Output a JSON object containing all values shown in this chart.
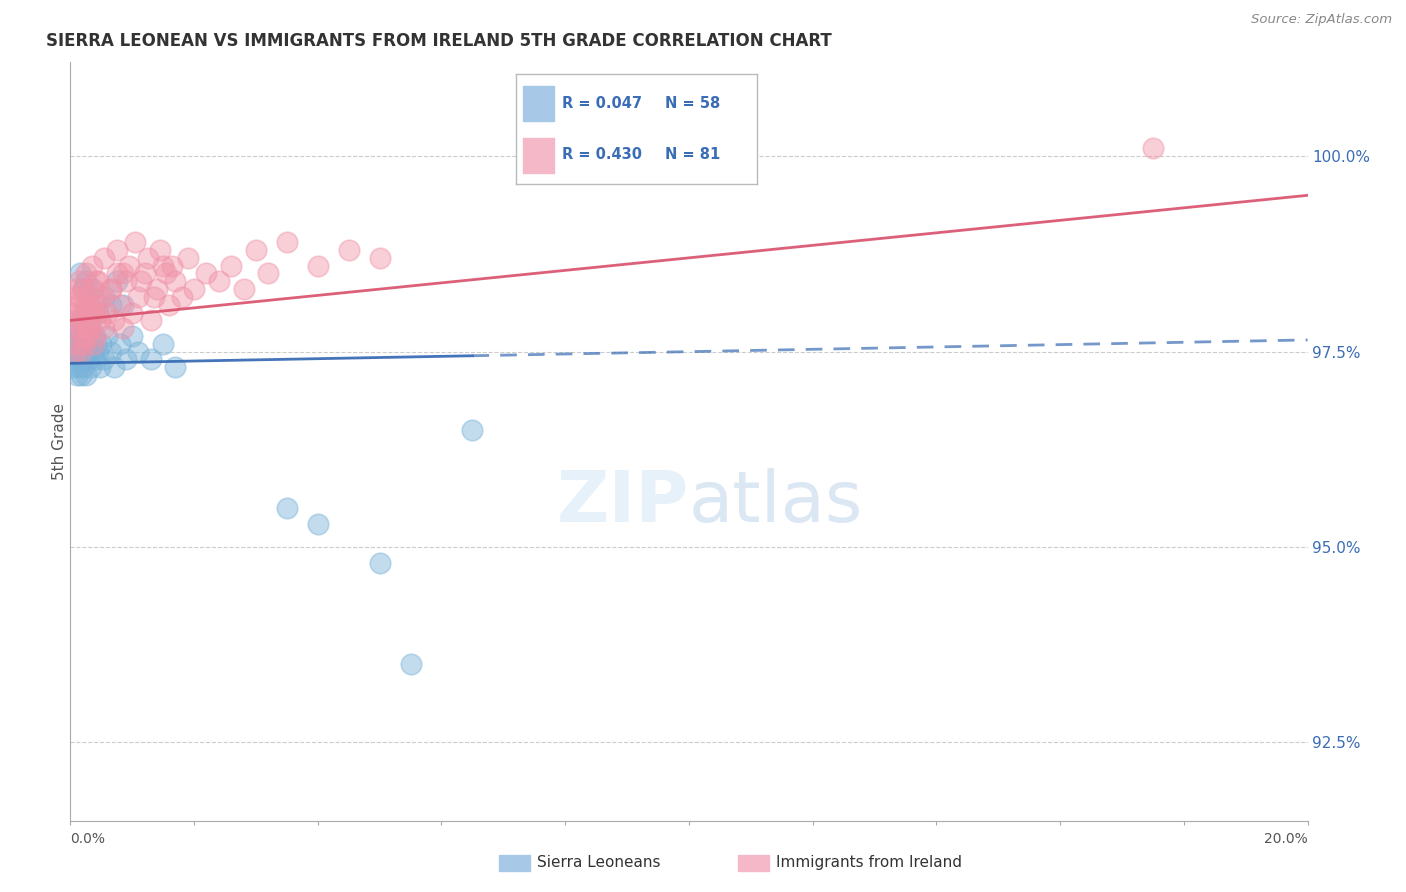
{
  "title": "SIERRA LEONEAN VS IMMIGRANTS FROM IRELAND 5TH GRADE CORRELATION CHART",
  "source": "Source: ZipAtlas.com",
  "ylabel": "5th Grade",
  "xmin": 0.0,
  "xmax": 20.0,
  "ymin": 91.5,
  "ymax": 101.2,
  "R_blue": 0.047,
  "N_blue": 58,
  "R_pink": 0.43,
  "N_pink": 81,
  "blue_color": "#7ab3d9",
  "pink_color": "#f093a8",
  "blue_line_color": "#3a6db5",
  "pink_line_color": "#d94f6a",
  "ytick_vals": [
    92.5,
    95.0,
    97.5,
    100.0
  ],
  "blue_scatter_x": [
    0.05,
    0.07,
    0.08,
    0.09,
    0.1,
    0.11,
    0.12,
    0.13,
    0.14,
    0.15,
    0.16,
    0.17,
    0.18,
    0.19,
    0.2,
    0.21,
    0.22,
    0.23,
    0.24,
    0.25,
    0.26,
    0.27,
    0.28,
    0.3,
    0.32,
    0.34,
    0.36,
    0.38,
    0.4,
    0.42,
    0.45,
    0.48,
    0.5,
    0.55,
    0.6,
    0.65,
    0.7,
    0.8,
    0.9,
    1.0,
    1.1,
    1.3,
    1.5,
    1.7,
    0.35,
    0.45,
    0.55,
    0.65,
    0.75,
    0.85,
    3.5,
    4.0,
    5.0,
    5.5,
    6.5,
    0.15,
    0.2,
    0.25
  ],
  "blue_scatter_y": [
    97.3,
    97.5,
    97.4,
    97.6,
    97.7,
    97.2,
    97.8,
    97.5,
    97.3,
    97.9,
    97.4,
    97.6,
    97.2,
    97.7,
    97.5,
    97.3,
    97.6,
    97.4,
    97.8,
    97.2,
    97.9,
    97.5,
    97.6,
    97.4,
    97.8,
    97.3,
    97.5,
    97.7,
    97.4,
    97.6,
    97.5,
    97.3,
    97.6,
    97.4,
    97.7,
    97.5,
    97.3,
    97.6,
    97.4,
    97.7,
    97.5,
    97.4,
    97.6,
    97.3,
    98.3,
    98.0,
    98.2,
    98.1,
    98.4,
    98.1,
    95.5,
    95.3,
    94.8,
    93.5,
    96.5,
    98.5,
    98.3,
    98.4
  ],
  "pink_scatter_x": [
    0.04,
    0.06,
    0.08,
    0.09,
    0.1,
    0.11,
    0.12,
    0.13,
    0.14,
    0.15,
    0.16,
    0.17,
    0.18,
    0.19,
    0.2,
    0.21,
    0.22,
    0.23,
    0.24,
    0.25,
    0.26,
    0.27,
    0.28,
    0.3,
    0.32,
    0.34,
    0.36,
    0.38,
    0.4,
    0.42,
    0.45,
    0.48,
    0.5,
    0.55,
    0.6,
    0.65,
    0.7,
    0.75,
    0.8,
    0.85,
    0.9,
    1.0,
    1.1,
    1.2,
    1.3,
    1.4,
    1.5,
    1.6,
    1.7,
    1.8,
    1.9,
    2.0,
    2.2,
    2.4,
    2.6,
    2.8,
    3.0,
    3.2,
    3.5,
    4.0,
    4.5,
    5.0,
    0.35,
    0.45,
    0.55,
    0.65,
    0.75,
    0.85,
    0.95,
    1.05,
    1.15,
    1.25,
    1.35,
    1.45,
    1.55,
    1.65,
    0.28,
    0.32,
    0.38,
    0.42,
    17.5
  ],
  "pink_scatter_y": [
    98.0,
    97.8,
    97.5,
    98.2,
    97.9,
    98.3,
    98.1,
    97.6,
    98.4,
    97.8,
    98.2,
    97.5,
    98.0,
    97.7,
    98.3,
    97.9,
    97.6,
    98.1,
    97.8,
    98.0,
    98.5,
    97.7,
    98.2,
    97.9,
    98.1,
    97.8,
    98.3,
    98.0,
    97.7,
    98.4,
    98.1,
    97.9,
    98.2,
    97.8,
    98.0,
    98.3,
    97.9,
    98.5,
    98.1,
    97.8,
    98.4,
    98.0,
    98.2,
    98.5,
    97.9,
    98.3,
    98.6,
    98.1,
    98.4,
    98.2,
    98.7,
    98.3,
    98.5,
    98.4,
    98.6,
    98.3,
    98.8,
    98.5,
    98.9,
    98.6,
    98.8,
    98.7,
    98.6,
    98.4,
    98.7,
    98.3,
    98.8,
    98.5,
    98.6,
    98.9,
    98.4,
    98.7,
    98.2,
    98.8,
    98.5,
    98.6,
    97.8,
    98.0,
    97.6,
    98.1,
    100.1
  ]
}
